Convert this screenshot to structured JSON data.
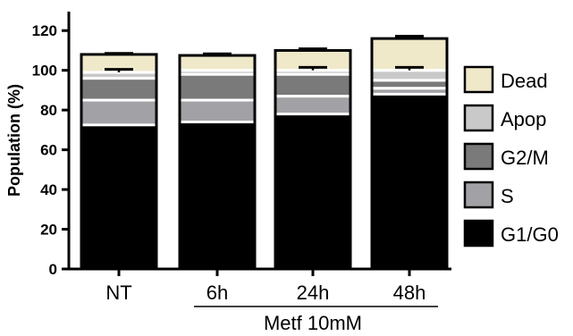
{
  "chart_data": {
    "type": "bar",
    "stacked": true,
    "categories": [
      "NT",
      "6h",
      "24h",
      "48h"
    ],
    "group_label": "Metf 10mM",
    "ylabel": "Population (%)",
    "ylim": [
      0,
      130
    ],
    "yticks": [
      0,
      20,
      40,
      60,
      80,
      100,
      120
    ],
    "grid": false,
    "legend_position": "right",
    "series": [
      {
        "name": "G1/G0",
        "color": "#000000",
        "values": [
          72.5,
          74,
          78,
          88
        ],
        "errors": [
          0,
          0,
          0,
          0
        ]
      },
      {
        "name": "S",
        "color": "#a2a2a6",
        "values": [
          12.5,
          11,
          9,
          3
        ],
        "errors": [
          0,
          0,
          0,
          0
        ]
      },
      {
        "name": "G2/M",
        "color": "#7a7a7a",
        "values": [
          11,
          13,
          11,
          4
        ],
        "errors": [
          0,
          0,
          0,
          0
        ]
      },
      {
        "name": "Apop",
        "color": "#c9c9c9",
        "values": [
          3,
          2,
          2,
          5
        ],
        "errors": [
          0,
          0,
          0,
          0
        ]
      },
      {
        "name": "Dead",
        "color": "#efe9ca",
        "values": [
          9,
          7.5,
          10,
          16
        ],
        "errors": [
          0.5,
          0.8,
          0.8,
          1.2
        ]
      }
    ],
    "apop_errors": [
      1.5,
      0,
      1.5,
      1.5
    ]
  }
}
